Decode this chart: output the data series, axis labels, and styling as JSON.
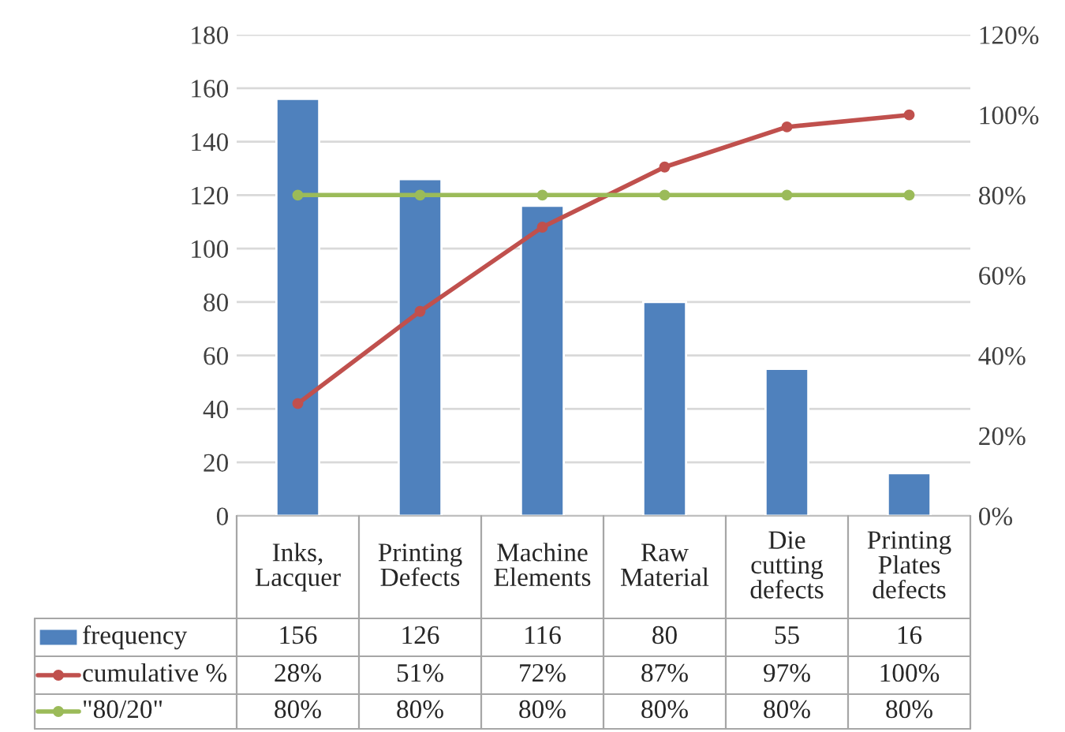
{
  "chart_data": {
    "type": "bar",
    "categories": [
      "Inks, Lacquer",
      "Printing Defects",
      "Machine Elements",
      "Raw Material",
      "Die cutting defects",
      "Printing Plates defects"
    ],
    "series": [
      {
        "name": "frequency",
        "color": "#4f81bd",
        "values": [
          156,
          126,
          116,
          80,
          55,
          16
        ],
        "value_labels": [
          "156",
          "126",
          "116",
          "80",
          "55",
          "16"
        ]
      },
      {
        "name": "cumulative %",
        "type": "line",
        "axis": "y2",
        "color": "#c0504d",
        "marker": "circle",
        "values": [
          28,
          51,
          72,
          87,
          97,
          100
        ],
        "value_labels": [
          "28%",
          "51%",
          "72%",
          "87%",
          "97%",
          "100%"
        ]
      },
      {
        "name": "\"80/20\"",
        "type": "line",
        "axis": "y2",
        "color": "#9bbb59",
        "marker": "circle",
        "values": [
          80,
          80,
          80,
          80,
          80,
          80
        ],
        "value_labels": [
          "80%",
          "80%",
          "80%",
          "80%",
          "80%",
          "80%"
        ]
      }
    ],
    "ylim": [
      0,
      180
    ],
    "yticks": [
      0,
      20,
      40,
      60,
      80,
      100,
      120,
      140,
      160,
      180
    ],
    "y2lim": [
      0,
      120
    ],
    "y2ticks": [
      {
        "value": 0,
        "label": "0%"
      },
      {
        "value": 20,
        "label": "20%"
      },
      {
        "value": 40,
        "label": "40%"
      },
      {
        "value": 60,
        "label": "60%"
      },
      {
        "value": 80,
        "label": "80%"
      },
      {
        "value": 100,
        "label": "100%"
      },
      {
        "value": 120,
        "label": "120%"
      }
    ],
    "grid": "y",
    "legend": "bottom"
  }
}
